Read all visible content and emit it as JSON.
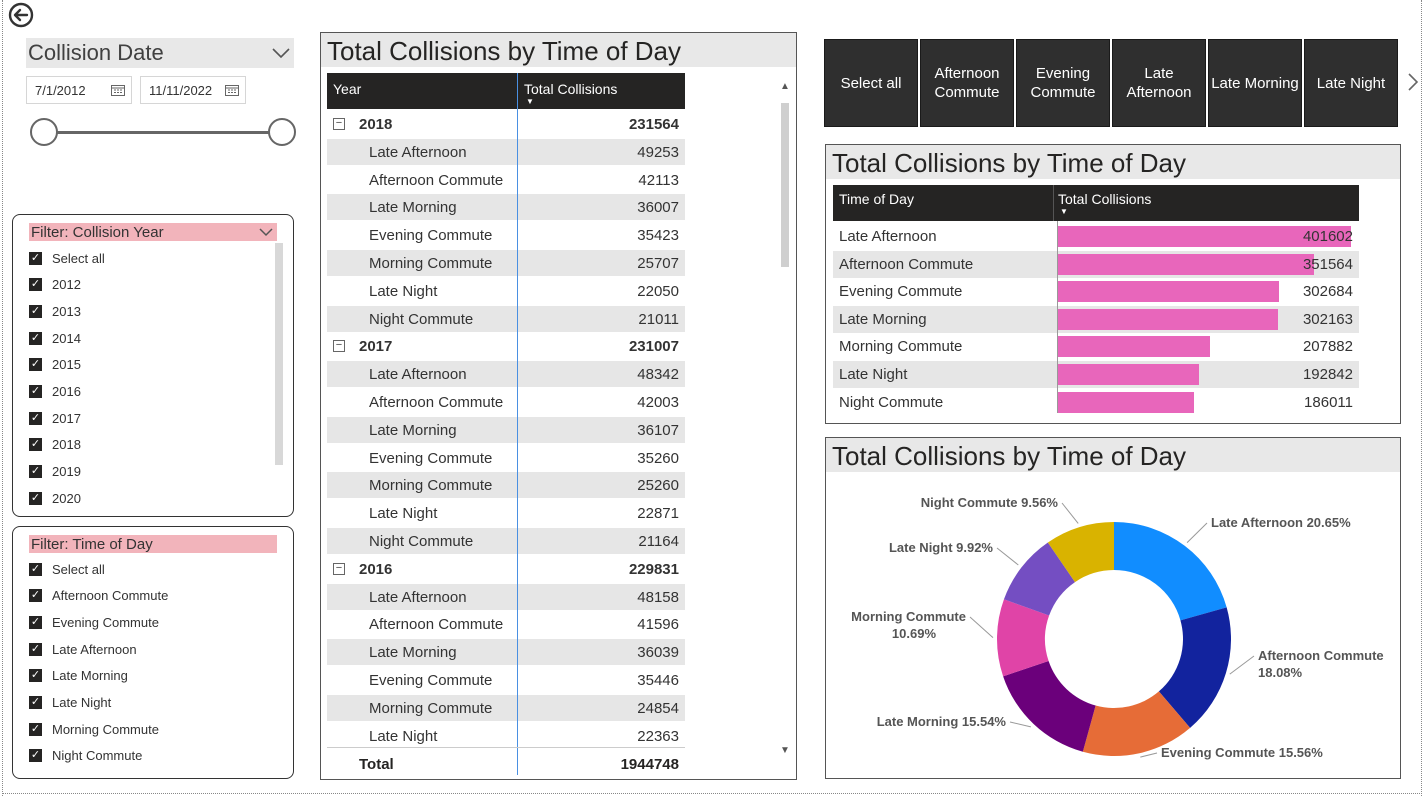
{
  "date_slicer": {
    "title": "Collision Date",
    "start_date": "7/1/2012",
    "end_date": "11/11/2022"
  },
  "filter_year": {
    "title": "Filter: Collision Year",
    "items": [
      "Select all",
      "2012",
      "2013",
      "2014",
      "2015",
      "2016",
      "2017",
      "2018",
      "2019",
      "2020"
    ]
  },
  "filter_time": {
    "title": "Filter: Time of Day",
    "items": [
      "Select all",
      "Afternoon Commute",
      "Evening Commute",
      "Late Afternoon",
      "Late Morning",
      "Late Night",
      "Morning Commute",
      "Night Commute"
    ]
  },
  "matrix": {
    "title": "Total Collisions by Time of Day",
    "col_year": "Year",
    "col_total": "Total Collisions",
    "groups": [
      {
        "year": "2018",
        "total": "231564",
        "rows": [
          {
            "label": "Late Afternoon",
            "value": "49253"
          },
          {
            "label": "Afternoon Commute",
            "value": "42113"
          },
          {
            "label": "Late Morning",
            "value": "36007"
          },
          {
            "label": "Evening Commute",
            "value": "35423"
          },
          {
            "label": "Morning Commute",
            "value": "25707"
          },
          {
            "label": "Late Night",
            "value": "22050"
          },
          {
            "label": "Night Commute",
            "value": "21011"
          }
        ]
      },
      {
        "year": "2017",
        "total": "231007",
        "rows": [
          {
            "label": "Late Afternoon",
            "value": "48342"
          },
          {
            "label": "Afternoon Commute",
            "value": "42003"
          },
          {
            "label": "Late Morning",
            "value": "36107"
          },
          {
            "label": "Evening Commute",
            "value": "35260"
          },
          {
            "label": "Morning Commute",
            "value": "25260"
          },
          {
            "label": "Late Night",
            "value": "22871"
          },
          {
            "label": "Night Commute",
            "value": "21164"
          }
        ]
      },
      {
        "year": "2016",
        "total": "229831",
        "rows": [
          {
            "label": "Late Afternoon",
            "value": "48158"
          },
          {
            "label": "Afternoon Commute",
            "value": "41596"
          },
          {
            "label": "Late Morning",
            "value": "36039"
          },
          {
            "label": "Evening Commute",
            "value": "35446"
          },
          {
            "label": "Morning Commute",
            "value": "24854"
          },
          {
            "label": "Late Night",
            "value": "22363"
          }
        ]
      }
    ],
    "total_label": "Total",
    "grand_total": "1944748"
  },
  "button_slicer": {
    "buttons": [
      "Select all",
      "Afternoon Commute",
      "Evening Commute",
      "Late Afternoon",
      "Late Morning",
      "Late Night"
    ]
  },
  "bar_table": {
    "title": "Total Collisions by Time of Day",
    "col_label": "Time of Day",
    "col_value": "Total Collisions",
    "bar_color": "#e866bb",
    "rows": [
      {
        "label": "Late Afternoon",
        "value": "401602",
        "num": 401602
      },
      {
        "label": "Afternoon Commute",
        "value": "351564",
        "num": 351564
      },
      {
        "label": "Evening Commute",
        "value": "302684",
        "num": 302684
      },
      {
        "label": "Late Morning",
        "value": "302163",
        "num": 302163
      },
      {
        "label": "Morning Commute",
        "value": "207882",
        "num": 207882
      },
      {
        "label": "Late Night",
        "value": "192842",
        "num": 192842
      },
      {
        "label": "Night Commute",
        "value": "186011",
        "num": 186011
      }
    ]
  },
  "donut": {
    "title": "Total Collisions by Time of Day",
    "slices": [
      {
        "name": "Late Afternoon",
        "percent": 20.65,
        "label": "Late Afternoon 20.65%",
        "color": "#118dff"
      },
      {
        "name": "Afternoon Commute",
        "percent": 18.08,
        "label": "Afternoon Commute 18.08%",
        "color": "#12239e"
      },
      {
        "name": "Evening Commute",
        "percent": 15.56,
        "label": "Evening Commute 15.56%",
        "color": "#e66c37"
      },
      {
        "name": "Late Morning",
        "percent": 15.54,
        "label": "Late Morning 15.54%",
        "color": "#6b007b"
      },
      {
        "name": "Morning Commute",
        "percent": 10.69,
        "label": "Morning Commute 10.69%",
        "color": "#e044a7"
      },
      {
        "name": "Late Night",
        "percent": 9.92,
        "label": "Late Night 9.92%",
        "color": "#744ec2"
      },
      {
        "name": "Night Commute",
        "percent": 9.56,
        "label": "Night Commute 9.56%",
        "color": "#d9b300"
      }
    ]
  }
}
